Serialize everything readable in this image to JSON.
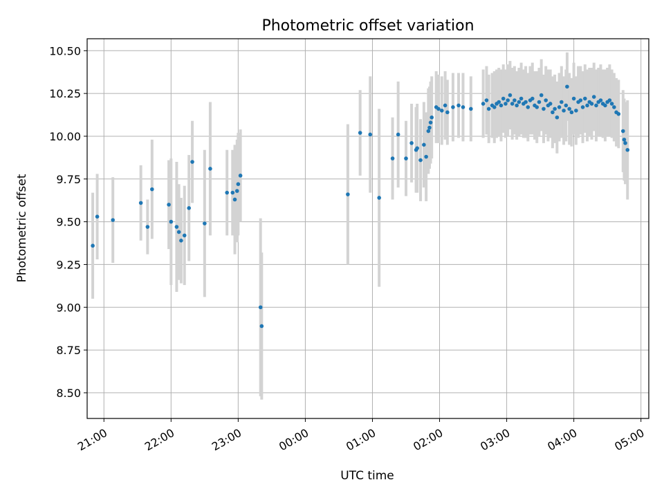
{
  "chart_data": {
    "type": "scatter",
    "title": "Photometric offset variation",
    "xlabel": "UTC time",
    "ylabel": "Photometric offset",
    "x_axis": "time (hours, continuing past midnight)",
    "xlim": [
      "20:45",
      "05:07"
    ],
    "ylim": [
      8.35,
      10.57
    ],
    "grid": true,
    "x_ticks": [
      "21:00",
      "22:00",
      "23:00",
      "00:00",
      "01:00",
      "02:00",
      "03:00",
      "04:00",
      "05:00"
    ],
    "y_ticks": [
      "8.50",
      "8.75",
      "9.00",
      "9.25",
      "9.50",
      "9.75",
      "10.00",
      "10.25",
      "10.50"
    ],
    "colors": {
      "point": "#1f77b4",
      "errorbar": "#d3d3d3",
      "grid": "#b0b0b0"
    },
    "series": [
      {
        "points": [
          [
            "20:50",
            9.36,
            0.31
          ],
          [
            "20:54",
            9.53,
            0.25
          ],
          [
            "21:08",
            9.51,
            0.25
          ],
          [
            "21:33",
            9.61,
            0.22
          ],
          [
            "21:39",
            9.47,
            0.16
          ],
          [
            "21:43",
            9.69,
            0.29
          ],
          [
            "21:58",
            9.6,
            0.26
          ],
          [
            "22:00",
            9.5,
            0.37
          ],
          [
            "22:05",
            9.47,
            0.38
          ],
          [
            "22:07",
            9.44,
            0.28
          ],
          [
            "22:09",
            9.39,
            0.25
          ],
          [
            "22:12",
            9.42,
            0.29
          ],
          [
            "22:16",
            9.58,
            0.31
          ],
          [
            "22:19",
            9.85,
            0.24
          ],
          [
            "22:30",
            9.49,
            0.43
          ],
          [
            "22:35",
            9.81,
            0.39
          ],
          [
            "22:50",
            9.67,
            0.25
          ],
          [
            "22:55",
            9.67,
            0.25
          ],
          [
            "22:57",
            9.63,
            0.32
          ],
          [
            "22:59",
            9.68,
            0.3
          ],
          [
            "23:00",
            9.72,
            0.3
          ],
          [
            "23:02",
            9.77,
            0.27
          ],
          [
            "23:20",
            9.0,
            0.52
          ],
          [
            "23:21",
            8.89,
            0.43
          ],
          [
            "00:38",
            9.66,
            0.41
          ],
          [
            "00:49",
            10.02,
            0.25
          ],
          [
            "00:58",
            10.01,
            0.34
          ],
          [
            "01:06",
            9.64,
            0.52
          ],
          [
            "01:18",
            9.87,
            0.24
          ],
          [
            "01:23",
            10.01,
            0.31
          ],
          [
            "01:30",
            9.87,
            0.22
          ],
          [
            "01:35",
            9.96,
            0.23
          ],
          [
            "01:39",
            9.92,
            0.25
          ],
          [
            "01:40",
            9.93,
            0.26
          ],
          [
            "01:43",
            9.86,
            0.24
          ],
          [
            "01:46",
            9.95,
            0.25
          ],
          [
            "01:48",
            9.88,
            0.26
          ],
          [
            "01:50",
            10.03,
            0.25
          ],
          [
            "01:51",
            10.05,
            0.24
          ],
          [
            "01:52",
            10.08,
            0.24
          ],
          [
            "01:53",
            10.11,
            0.24
          ],
          [
            "01:57",
            10.17,
            0.21
          ],
          [
            "01:59",
            10.16,
            0.2
          ],
          [
            "02:02",
            10.15,
            0.2
          ],
          [
            "02:05",
            10.18,
            0.2
          ],
          [
            "02:07",
            10.14,
            0.19
          ],
          [
            "02:12",
            10.17,
            0.2
          ],
          [
            "02:17",
            10.18,
            0.19
          ],
          [
            "02:21",
            10.17,
            0.2
          ],
          [
            "02:28",
            10.16,
            0.19
          ],
          [
            "02:39",
            10.19,
            0.2
          ],
          [
            "02:42",
            10.21,
            0.2
          ],
          [
            "02:44",
            10.16,
            0.2
          ],
          [
            "02:47",
            10.18,
            0.19
          ],
          [
            "02:49",
            10.17,
            0.21
          ],
          [
            "02:51",
            10.19,
            0.2
          ],
          [
            "02:53",
            10.2,
            0.2
          ],
          [
            "02:55",
            10.18,
            0.21
          ],
          [
            "02:57",
            10.22,
            0.2
          ],
          [
            "02:59",
            10.19,
            0.2
          ],
          [
            "03:01",
            10.21,
            0.21
          ],
          [
            "03:03",
            10.24,
            0.2
          ],
          [
            "03:05",
            10.19,
            0.21
          ],
          [
            "03:07",
            10.21,
            0.2
          ],
          [
            "03:09",
            10.18,
            0.2
          ],
          [
            "03:11",
            10.2,
            0.2
          ],
          [
            "03:13",
            10.22,
            0.21
          ],
          [
            "03:15",
            10.19,
            0.2
          ],
          [
            "03:17",
            10.2,
            0.21
          ],
          [
            "03:19",
            10.17,
            0.2
          ],
          [
            "03:21",
            10.21,
            0.2
          ],
          [
            "03:23",
            10.22,
            0.21
          ],
          [
            "03:25",
            10.18,
            0.2
          ],
          [
            "03:27",
            10.17,
            0.21
          ],
          [
            "03:29",
            10.2,
            0.2
          ],
          [
            "03:31",
            10.24,
            0.21
          ],
          [
            "03:33",
            10.16,
            0.2
          ],
          [
            "03:35",
            10.21,
            0.2
          ],
          [
            "03:37",
            10.18,
            0.21
          ],
          [
            "03:39",
            10.19,
            0.2
          ],
          [
            "03:41",
            10.14,
            0.21
          ],
          [
            "03:43",
            10.16,
            0.2
          ],
          [
            "03:45",
            10.11,
            0.21
          ],
          [
            "03:47",
            10.17,
            0.2
          ],
          [
            "03:49",
            10.2,
            0.21
          ],
          [
            "03:51",
            10.15,
            0.2
          ],
          [
            "03:53",
            10.18,
            0.21
          ],
          [
            "03:54",
            10.29,
            0.2
          ],
          [
            "03:56",
            10.16,
            0.21
          ],
          [
            "03:58",
            10.14,
            0.2
          ],
          [
            "04:00",
            10.22,
            0.21
          ],
          [
            "04:02",
            10.15,
            0.2
          ],
          [
            "04:04",
            10.2,
            0.21
          ],
          [
            "04:06",
            10.21,
            0.2
          ],
          [
            "04:08",
            10.17,
            0.21
          ],
          [
            "04:10",
            10.22,
            0.2
          ],
          [
            "04:12",
            10.18,
            0.21
          ],
          [
            "04:14",
            10.2,
            0.2
          ],
          [
            "04:16",
            10.19,
            0.21
          ],
          [
            "04:18",
            10.23,
            0.2
          ],
          [
            "04:20",
            10.18,
            0.21
          ],
          [
            "04:22",
            10.2,
            0.2
          ],
          [
            "04:24",
            10.21,
            0.21
          ],
          [
            "04:26",
            10.19,
            0.2
          ],
          [
            "04:28",
            10.18,
            0.21
          ],
          [
            "04:30",
            10.2,
            0.2
          ],
          [
            "04:32",
            10.21,
            0.21
          ],
          [
            "04:34",
            10.19,
            0.2
          ],
          [
            "04:36",
            10.17,
            0.2
          ],
          [
            "04:38",
            10.14,
            0.2
          ],
          [
            "04:40",
            10.13,
            0.2
          ],
          [
            "04:44",
            10.03,
            0.24
          ],
          [
            "04:45",
            9.98,
            0.24
          ],
          [
            "04:46",
            9.96,
            0.24
          ],
          [
            "04:48",
            9.92,
            0.29
          ]
        ]
      }
    ]
  }
}
